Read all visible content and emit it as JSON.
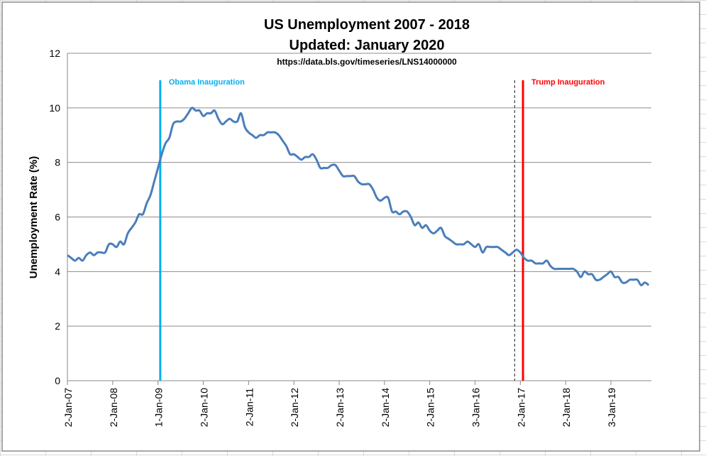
{
  "chart_data": {
    "type": "line",
    "title": "US Unemployment 2007 - 2018",
    "subtitle": "Updated:  January 2020",
    "source": "https://data.bls.gov/timeseries/LNS14000000",
    "ylabel": "Unemployment Rate (%)",
    "xlabel": "",
    "ylim": [
      0,
      12
    ],
    "yticks": [
      0,
      2,
      4,
      6,
      8,
      10,
      12
    ],
    "grid": "horizontal",
    "legend": "none",
    "x_start": "Jan 2007",
    "x_step": "monthly",
    "xtick_labels": [
      "2-Jan-07",
      "2-Jan-08",
      "1-Jan-09",
      "2-Jan-10",
      "2-Jan-11",
      "2-Jan-12",
      "2-Jan-13",
      "2-Jan-14",
      "2-Jan-15",
      "3-Jan-16",
      "2-Jan-17",
      "2-Jan-18",
      "3-Jan-19"
    ],
    "series": [
      {
        "name": "Unemployment Rate",
        "color": "#4a7ebb",
        "values": [
          4.6,
          4.5,
          4.4,
          4.5,
          4.4,
          4.6,
          4.7,
          4.6,
          4.7,
          4.7,
          4.7,
          5.0,
          5.0,
          4.9,
          5.1,
          5.0,
          5.4,
          5.6,
          5.8,
          6.1,
          6.1,
          6.5,
          6.8,
          7.3,
          7.8,
          8.3,
          8.7,
          8.9,
          9.4,
          9.5,
          9.5,
          9.6,
          9.8,
          10.0,
          9.9,
          9.9,
          9.7,
          9.8,
          9.8,
          9.9,
          9.6,
          9.4,
          9.5,
          9.6,
          9.5,
          9.5,
          9.8,
          9.3,
          9.1,
          9.0,
          8.9,
          9.0,
          9.0,
          9.1,
          9.1,
          9.1,
          9.0,
          8.8,
          8.6,
          8.3,
          8.3,
          8.2,
          8.1,
          8.2,
          8.2,
          8.3,
          8.1,
          7.8,
          7.8,
          7.8,
          7.9,
          7.9,
          7.7,
          7.5,
          7.5,
          7.5,
          7.5,
          7.3,
          7.2,
          7.2,
          7.2,
          7.0,
          6.7,
          6.6,
          6.7,
          6.7,
          6.2,
          6.2,
          6.1,
          6.2,
          6.2,
          6.0,
          5.7,
          5.8,
          5.6,
          5.7,
          5.5,
          5.4,
          5.5,
          5.6,
          5.3,
          5.2,
          5.1,
          5.0,
          5.0,
          5.0,
          5.1,
          5.0,
          4.9,
          5.0,
          4.7,
          4.9,
          4.9,
          4.9,
          4.9,
          4.8,
          4.7,
          4.6,
          4.7,
          4.8,
          4.7,
          4.5,
          4.4,
          4.4,
          4.3,
          4.3,
          4.3,
          4.4,
          4.2,
          4.1,
          4.1,
          4.1,
          4.1,
          4.1,
          4.1,
          4.0,
          3.8,
          4.0,
          3.9,
          3.9,
          3.7,
          3.7,
          3.8,
          3.9,
          4.0,
          3.8,
          3.8,
          3.6,
          3.6,
          3.7,
          3.7,
          3.7,
          3.5,
          3.6,
          3.5
        ]
      }
    ],
    "annotations": [
      {
        "label": "Obama Inauguration",
        "month_index": 24.6,
        "color": "#00b0f0",
        "style": "solid"
      },
      {
        "label": "Trump Inauguration",
        "month_index": 120.7,
        "color": "#ff0000",
        "style": "solid"
      },
      {
        "label": "",
        "month_index": 118.5,
        "color": "#404040",
        "style": "dashed"
      }
    ]
  }
}
